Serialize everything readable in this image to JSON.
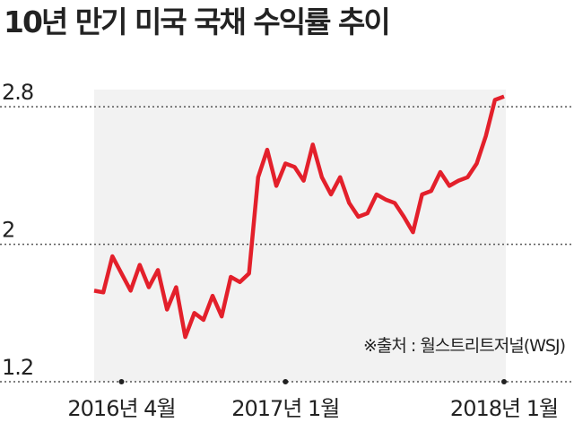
{
  "chart_data": {
    "type": "line",
    "title": "10년 만기 미국 국채 수익률 추이",
    "source": "※출처 : 월스트리트저널(WSJ)",
    "categories": [
      null,
      null,
      null,
      "2016년 4월",
      null,
      null,
      null,
      null,
      null,
      null,
      null,
      null,
      null,
      null,
      null,
      null,
      null,
      null,
      null,
      null,
      null,
      "2017년 1월",
      null,
      null,
      null,
      null,
      null,
      null,
      null,
      null,
      null,
      null,
      null,
      null,
      null,
      null,
      null,
      null,
      null,
      null,
      null,
      null,
      null,
      null,
      null,
      "2018년 1월"
    ],
    "series": [
      {
        "name": "10년 만기 미국 국채 수익률",
        "color": "#e3202b",
        "values": [
          1.73,
          1.72,
          1.93,
          1.83,
          1.73,
          1.88,
          1.75,
          1.85,
          1.62,
          1.75,
          1.46,
          1.6,
          1.56,
          1.7,
          1.58,
          1.81,
          1.78,
          1.83,
          2.39,
          2.55,
          2.34,
          2.47,
          2.45,
          2.37,
          2.58,
          2.39,
          2.29,
          2.39,
          2.24,
          2.16,
          2.18,
          2.29,
          2.26,
          2.24,
          2.16,
          2.07,
          2.29,
          2.31,
          2.42,
          2.34,
          2.37,
          2.39,
          2.47,
          2.63,
          2.84,
          2.86
        ]
      }
    ],
    "ylim": [
      1.2,
      2.9
    ],
    "yticks": [
      1.2,
      2.0,
      2.8
    ],
    "grid": true
  }
}
